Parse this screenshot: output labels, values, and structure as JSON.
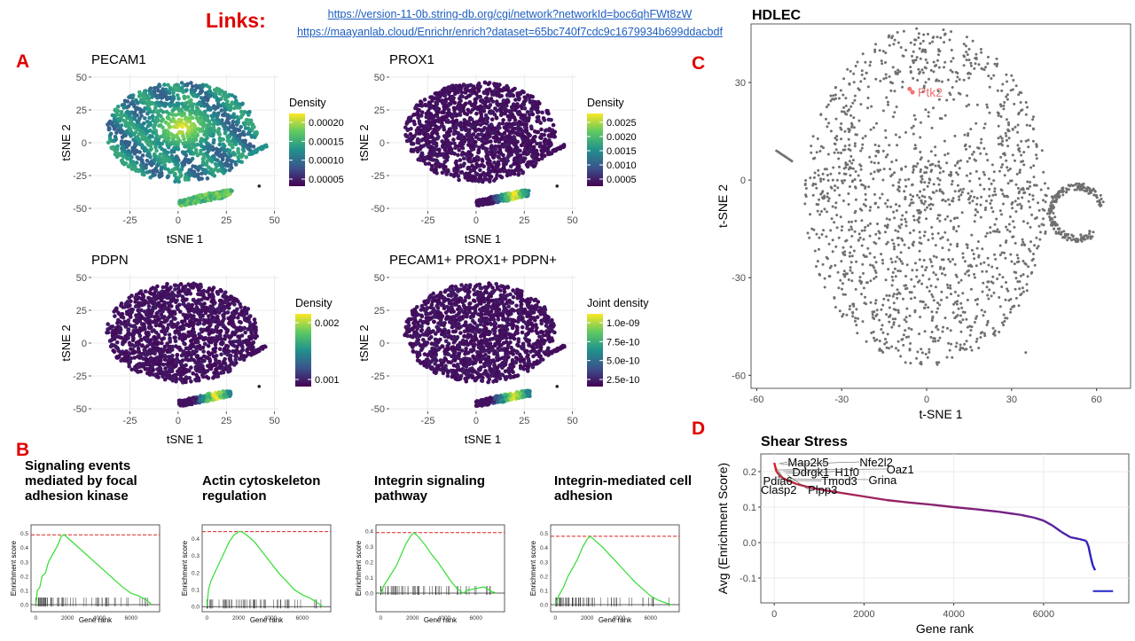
{
  "links": {
    "heading": "Links:",
    "url1": "https://version-11-0b.string-db.org/cgi/network?networkId=boc6qhFWt8zW",
    "url2": "https://maayanlab.cloud/Enrichr/enrich?dataset=65bc740f7cdc9c1679934b699ddacbdf"
  },
  "panels": {
    "A": "A",
    "B": "B",
    "C": "C",
    "D": "D"
  },
  "colors": {
    "panel_letter": "#e00000",
    "link": "#1f5fbf",
    "viridis": [
      "#440154",
      "#3b528b",
      "#21918c",
      "#5ec962",
      "#fde725"
    ],
    "tsne_points": "#707070",
    "highlight": "#f07070",
    "enrichment_curve": "#33dd33",
    "threshold_line": "#dd2222",
    "shear_high": "#dd2222",
    "shear_low": "#2222cc"
  },
  "chart_data": [
    {
      "type": "scatter",
      "panel": "A",
      "title": "PECAM1",
      "xlabel": "tSNE 1",
      "ylabel": "tSNE 2",
      "xlim": [
        -45,
        52
      ],
      "ylim": [
        -52,
        52
      ],
      "x_ticks": [
        "-25",
        "0",
        "25",
        "50"
      ],
      "y_ticks": [
        "50",
        "25",
        "0",
        "-25",
        "-50"
      ],
      "legend": {
        "title": "Density",
        "labels": [
          "0.00020",
          "0.00015",
          "0.00010",
          "0.00005"
        ],
        "placement": "right"
      },
      "grid": true
    },
    {
      "type": "scatter",
      "panel": "A",
      "title": "PROX1",
      "xlabel": "tSNE 1",
      "ylabel": "tSNE 2",
      "xlim": [
        -45,
        52
      ],
      "ylim": [
        -52,
        52
      ],
      "x_ticks": [
        "-25",
        "0",
        "25",
        "50"
      ],
      "y_ticks": [
        "50",
        "25",
        "0",
        "-25",
        "-50"
      ],
      "legend": {
        "title": "Density",
        "labels": [
          "0.0025",
          "0.0020",
          "0.0015",
          "0.0010",
          "0.0005"
        ],
        "placement": "right"
      },
      "grid": true
    },
    {
      "type": "scatter",
      "panel": "A",
      "title": "PDPN",
      "xlabel": "tSNE 1",
      "ylabel": "tSNE 2",
      "xlim": [
        -45,
        52
      ],
      "ylim": [
        -52,
        52
      ],
      "x_ticks": [
        "-25",
        "0",
        "25",
        "50"
      ],
      "y_ticks": [
        "50",
        "25",
        "0",
        "-25",
        "-50"
      ],
      "legend": {
        "title": "Density",
        "labels": [
          "0.002",
          "0.001"
        ],
        "placement": "right"
      },
      "grid": true
    },
    {
      "type": "scatter",
      "panel": "A",
      "title": "PECAM1+ PROX1+ PDPN+",
      "xlabel": "tSNE 1",
      "ylabel": "tSNE 2",
      "xlim": [
        -45,
        52
      ],
      "ylim": [
        -52,
        52
      ],
      "x_ticks": [
        "-25",
        "0",
        "25",
        "50"
      ],
      "y_ticks": [
        "50",
        "25",
        "0",
        "-25",
        "-50"
      ],
      "legend": {
        "title": "Joint density",
        "labels": [
          "1.0e-09",
          "7.5e-10",
          "5.0e-10",
          "2.5e-10"
        ],
        "placement": "right"
      },
      "grid": true
    },
    {
      "type": "line",
      "panel": "B",
      "title": "Signaling events mediated by focal adhesion kinase",
      "xlabel": "Gene rank",
      "ylabel": "Enrichment score",
      "x_ticks": [
        "0",
        "2000",
        "4000",
        "6000"
      ],
      "y_ticks": [
        "0.0",
        "0.1",
        "0.2",
        "0.3",
        "0.4",
        "0.5"
      ],
      "xlim": [
        -300,
        7800
      ],
      "ylim": [
        -0.05,
        0.56
      ],
      "threshold": 0.49,
      "x": [
        0,
        100,
        250,
        400,
        600,
        800,
        1000,
        1200,
        1400,
        1600,
        1800,
        2000,
        2500,
        3000,
        3500,
        4000,
        4500,
        5000,
        5500,
        6000,
        6500,
        7000,
        7300
      ],
      "y": [
        0.0,
        0.1,
        0.12,
        0.2,
        0.22,
        0.3,
        0.34,
        0.38,
        0.42,
        0.48,
        0.49,
        0.47,
        0.42,
        0.37,
        0.32,
        0.27,
        0.22,
        0.17,
        0.12,
        0.08,
        0.06,
        0.03,
        0.0
      ]
    },
    {
      "type": "line",
      "panel": "B",
      "title": "Actin cytoskeleton regulation",
      "xlabel": "Gene rank",
      "ylabel": "Enrichment score",
      "x_ticks": [
        "0",
        "2000",
        "4000",
        "6000"
      ],
      "y_ticks": [
        "0.0",
        "0.1",
        "0.2",
        "0.3",
        "0.4"
      ],
      "xlim": [
        -300,
        7800
      ],
      "ylim": [
        -0.03,
        0.48
      ],
      "threshold": 0.44,
      "x": [
        0,
        100,
        250,
        500,
        800,
        1100,
        1400,
        1700,
        2000,
        2200,
        2500,
        3000,
        3500,
        4000,
        4500,
        5000,
        5500,
        6000,
        6500,
        7000,
        7300
      ],
      "y": [
        0.0,
        0.1,
        0.15,
        0.2,
        0.26,
        0.32,
        0.38,
        0.42,
        0.44,
        0.44,
        0.42,
        0.38,
        0.32,
        0.26,
        0.2,
        0.15,
        0.1,
        0.07,
        0.05,
        0.02,
        0.0
      ]
    },
    {
      "type": "line",
      "panel": "B",
      "title": "Integrin signaling pathway",
      "xlabel": "Gene rank",
      "ylabel": "Enrichment score",
      "x_ticks": [
        "0",
        "2000",
        "4000",
        "6000"
      ],
      "y_ticks": [
        "0.0",
        "0.1",
        "0.2",
        "0.3",
        "0.4"
      ],
      "xlim": [
        -300,
        7800
      ],
      "ylim": [
        -0.12,
        0.44
      ],
      "threshold": 0.39,
      "x": [
        0,
        200,
        400,
        700,
        1000,
        1300,
        1600,
        1900,
        2100,
        2400,
        2800,
        3200,
        3600,
        4000,
        4400,
        4800,
        5200,
        5500,
        6000,
        6500,
        7000,
        7300
      ],
      "y": [
        0.0,
        0.05,
        0.08,
        0.13,
        0.18,
        0.25,
        0.32,
        0.37,
        0.39,
        0.36,
        0.31,
        0.25,
        0.2,
        0.14,
        0.08,
        0.03,
        0.0,
        0.02,
        0.03,
        0.04,
        0.01,
        0.0
      ]
    },
    {
      "type": "line",
      "panel": "B",
      "title": "Integrin-mediated cell adhesion",
      "xlabel": "Gene rank",
      "ylabel": "Enrichment score",
      "x_ticks": [
        "0",
        "2000",
        "4000",
        "6000"
      ],
      "y_ticks": [
        "0.0",
        "0.1",
        "0.2",
        "0.3",
        "0.4",
        "0.5"
      ],
      "xlim": [
        -300,
        7800
      ],
      "ylim": [
        -0.05,
        0.56
      ],
      "threshold": 0.48,
      "x": [
        0,
        200,
        500,
        800,
        1100,
        1400,
        1700,
        2000,
        2200,
        2500,
        3000,
        3500,
        4000,
        4500,
        5000,
        5500,
        6000,
        6500,
        7000,
        7300
      ],
      "y": [
        0.0,
        0.06,
        0.12,
        0.2,
        0.26,
        0.32,
        0.4,
        0.46,
        0.48,
        0.45,
        0.4,
        0.34,
        0.28,
        0.22,
        0.16,
        0.11,
        0.06,
        0.03,
        0.01,
        0.0
      ]
    },
    {
      "type": "scatter",
      "panel": "C",
      "title": "HDLEC",
      "xlabel": "t-SNE 1",
      "ylabel": "t-SNE 2",
      "xlim": [
        -62,
        72
      ],
      "ylim": [
        -64,
        48
      ],
      "x_ticks": [
        -60,
        -30,
        0,
        30,
        60
      ],
      "y_ticks": [
        30,
        0,
        -30,
        -60
      ],
      "grid": false,
      "highlight": {
        "label": "Ptk2",
        "x": -5,
        "y": 27
      }
    },
    {
      "type": "scatter",
      "panel": "D",
      "title": "Shear Stress",
      "xlabel": "Gene rank",
      "ylabel": "Avg (Enrichment Score)",
      "xlim": [
        -300,
        7900
      ],
      "ylim": [
        -0.17,
        0.25
      ],
      "x_ticks": [
        0,
        2000,
        4000,
        6000
      ],
      "y_ticks": [
        "0.2",
        "0.1",
        "0.0",
        "-0.1"
      ],
      "grid": true,
      "x": [
        0,
        50,
        150,
        300,
        500,
        800,
        1100,
        1500,
        2000,
        2500,
        3000,
        3500,
        4000,
        4500,
        5000,
        5500,
        5800,
        6000,
        6200,
        6400,
        6600,
        6800,
        6950,
        7000,
        7050,
        7100,
        7150
      ],
      "y": [
        0.225,
        0.2,
        0.185,
        0.175,
        0.165,
        0.155,
        0.148,
        0.14,
        0.13,
        0.12,
        0.113,
        0.107,
        0.1,
        0.094,
        0.087,
        0.078,
        0.07,
        0.062,
        0.048,
        0.03,
        0.015,
        0.01,
        0.005,
        -0.01,
        -0.04,
        -0.065,
        -0.078
      ],
      "tail": {
        "x0": 7100,
        "x1": 7550,
        "y": -0.137
      },
      "labels": [
        {
          "text": "Map2k5",
          "x": 100,
          "y": 0.222,
          "lx": 300,
          "ly": 0.215
        },
        {
          "text": "Nfe2l2",
          "x": 150,
          "y": 0.22,
          "lx": 1900,
          "ly": 0.215
        },
        {
          "text": "Ddrgk1",
          "x": 200,
          "y": 0.2,
          "lx": 400,
          "ly": 0.188
        },
        {
          "text": "H1f0",
          "x": 250,
          "y": 0.195,
          "lx": 1350,
          "ly": 0.188
        },
        {
          "text": "Oaz1",
          "x": 100,
          "y": 0.205,
          "lx": 2500,
          "ly": 0.195
        },
        {
          "text": "Grina",
          "x": 300,
          "y": 0.18,
          "lx": 2100,
          "ly": 0.165
        },
        {
          "text": "Tmod3",
          "x": 350,
          "y": 0.175,
          "lx": 1050,
          "ly": 0.162
        },
        {
          "text": "Pdia6",
          "x": 50,
          "y": 0.21,
          "lx": -250,
          "ly": 0.162
        },
        {
          "text": "Clasp2",
          "x": 80,
          "y": 0.2,
          "lx": -300,
          "ly": 0.138
        },
        {
          "text": "Plpp3",
          "x": 300,
          "y": 0.19,
          "lx": 750,
          "ly": 0.138
        }
      ]
    }
  ]
}
